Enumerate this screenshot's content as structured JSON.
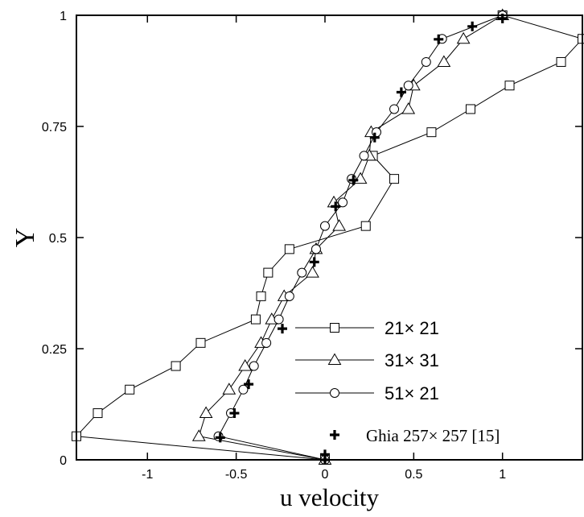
{
  "chart_data": {
    "type": "line",
    "title": "",
    "xlabel": "u velocity",
    "ylabel": "Y",
    "xlim": [
      -1.4,
      1.45
    ],
    "ylim": [
      0,
      1
    ],
    "x_ticks": [
      -1,
      -0.5,
      0,
      0.5,
      1
    ],
    "x_tick_labels": [
      "-1",
      "-0.5",
      "0",
      "0.5",
      "1"
    ],
    "y_ticks": [
      0,
      0.25,
      0.5,
      0.75,
      1
    ],
    "y_tick_labels": [
      "0",
      "0.25",
      "0.5",
      "0.75",
      "1"
    ],
    "grid": false,
    "legend_position": "bottom-right",
    "series": [
      {
        "name": "21× 21",
        "marker": "square",
        "line": true,
        "points": [
          [
            0,
            0
          ],
          [
            -1.4,
            0.053
          ],
          [
            -1.28,
            0.105
          ],
          [
            -1.1,
            0.158
          ],
          [
            -0.84,
            0.211
          ],
          [
            -0.7,
            0.263
          ],
          [
            -0.39,
            0.316
          ],
          [
            -0.36,
            0.368
          ],
          [
            -0.32,
            0.421
          ],
          [
            -0.2,
            0.474
          ],
          [
            0.23,
            0.526
          ],
          [
            0.39,
            0.632
          ],
          [
            0.27,
            0.684
          ],
          [
            0.6,
            0.737
          ],
          [
            0.82,
            0.789
          ],
          [
            1.04,
            0.842
          ],
          [
            1.33,
            0.895
          ],
          [
            1.45,
            0.947
          ],
          [
            1.0,
            1.0
          ]
        ]
      },
      {
        "name": "31× 31",
        "marker": "triangle",
        "line": true,
        "points": [
          [
            0,
            0
          ],
          [
            -0.71,
            0.053
          ],
          [
            -0.67,
            0.105
          ],
          [
            -0.54,
            0.158
          ],
          [
            -0.45,
            0.211
          ],
          [
            -0.36,
            0.263
          ],
          [
            -0.3,
            0.316
          ],
          [
            -0.23,
            0.368
          ],
          [
            -0.07,
            0.421
          ],
          [
            -0.05,
            0.474
          ],
          [
            0.08,
            0.526
          ],
          [
            0.05,
            0.579
          ],
          [
            0.2,
            0.632
          ],
          [
            0.25,
            0.684
          ],
          [
            0.26,
            0.737
          ],
          [
            0.47,
            0.789
          ],
          [
            0.5,
            0.842
          ],
          [
            0.67,
            0.895
          ],
          [
            0.78,
            0.947
          ],
          [
            1.0,
            1.0
          ]
        ]
      },
      {
        "name": "51× 21",
        "marker": "circle",
        "line": true,
        "points": [
          [
            0,
            0
          ],
          [
            -0.6,
            0.053
          ],
          [
            -0.53,
            0.105
          ],
          [
            -0.46,
            0.158
          ],
          [
            -0.4,
            0.211
          ],
          [
            -0.33,
            0.263
          ],
          [
            -0.26,
            0.316
          ],
          [
            -0.2,
            0.368
          ],
          [
            -0.13,
            0.421
          ],
          [
            -0.05,
            0.474
          ],
          [
            0.0,
            0.526
          ],
          [
            0.1,
            0.579
          ],
          [
            0.15,
            0.632
          ],
          [
            0.22,
            0.684
          ],
          [
            0.29,
            0.737
          ],
          [
            0.39,
            0.789
          ],
          [
            0.47,
            0.842
          ],
          [
            0.57,
            0.895
          ],
          [
            0.66,
            0.947
          ],
          [
            1.0,
            1.0
          ]
        ]
      },
      {
        "name": "Ghia 257× 257 [15]",
        "marker": "plus",
        "line": false,
        "points": [
          [
            0,
            0
          ],
          [
            0,
            0.012
          ],
          [
            -0.59,
            0.05
          ],
          [
            -0.51,
            0.105
          ],
          [
            -0.43,
            0.17
          ],
          [
            -0.24,
            0.295
          ],
          [
            -0.06,
            0.445
          ],
          [
            0.06,
            0.57
          ],
          [
            0.16,
            0.629
          ],
          [
            0.28,
            0.725
          ],
          [
            0.43,
            0.827
          ],
          [
            0.64,
            0.946
          ],
          [
            0.83,
            0.975
          ],
          [
            1.0,
            0.993
          ]
        ]
      }
    ]
  }
}
